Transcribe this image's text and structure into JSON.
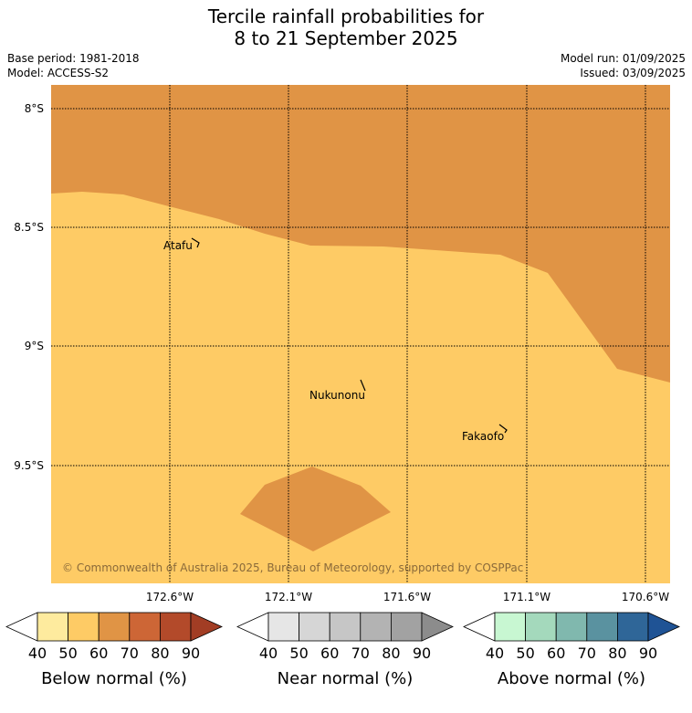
{
  "title": {
    "line1": "Tercile rainfall probabilities for",
    "line2": "8 to 21 September 2025"
  },
  "info": {
    "base_period": "Base period: 1981-2018",
    "model": "Model: ACCESS-S2",
    "model_run": "Model run: 01/09/2025",
    "issued": "Issued: 03/09/2025"
  },
  "map": {
    "lat_labels": [
      "8°S",
      "8.5°S",
      "9°S",
      "9.5°S"
    ],
    "lon_labels": [
      "172.6°W",
      "172.1°W",
      "171.6°W",
      "171.1°W",
      "170.6°W"
    ],
    "places": [
      {
        "name": "Atafu"
      },
      {
        "name": "Nukunonu"
      },
      {
        "name": "Fakaofo"
      }
    ],
    "copyright": "© Commonwealth of Australia 2025, Bureau of Meteorology, supported by COSPPac",
    "fill_colors": {
      "below_50_60": "#fecb65",
      "below_60_70": "#e09445"
    }
  },
  "colorbars": [
    {
      "label": "Below normal (%)",
      "ticks": [
        "40",
        "50",
        "60",
        "70",
        "80",
        "90"
      ],
      "colors": [
        "#ffffff",
        "#feeb9e",
        "#fecb65",
        "#e09445",
        "#cd6636",
        "#b34a2a",
        "#a23d24"
      ]
    },
    {
      "label": "Near normal (%)",
      "ticks": [
        "40",
        "50",
        "60",
        "70",
        "80",
        "90"
      ],
      "colors": [
        "#ffffff",
        "#e6e6e6",
        "#d6d6d6",
        "#c6c6c6",
        "#b3b3b3",
        "#a2a2a2",
        "#8c8c8c"
      ]
    },
    {
      "label": "Above normal (%)",
      "ticks": [
        "40",
        "50",
        "60",
        "70",
        "80",
        "90"
      ],
      "colors": [
        "#ffffff",
        "#c8f7d2",
        "#a4d9bc",
        "#80b8ae",
        "#5a92a0",
        "#2f6698",
        "#1f5395"
      ]
    }
  ]
}
